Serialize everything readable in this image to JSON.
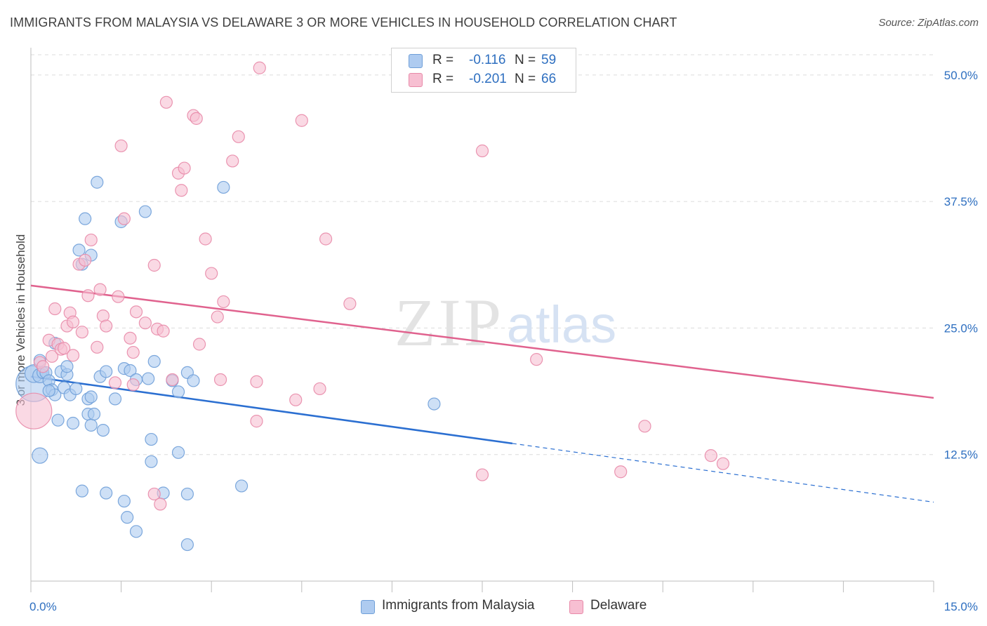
{
  "title": "IMMIGRANTS FROM MALAYSIA VS DELAWARE 3 OR MORE VEHICLES IN HOUSEHOLD CORRELATION CHART",
  "source": "Source: ZipAtlas.com",
  "watermark": {
    "zip": "ZIP",
    "atlas": "atlas"
  },
  "legend_stats": [
    {
      "r_label": "R =",
      "r_value": "-0.116",
      "n_label": "N =",
      "n_value": "59"
    },
    {
      "r_label": "R =",
      "r_value": "-0.201",
      "n_label": "N =",
      "n_value": "66"
    }
  ],
  "colors": {
    "blue_fill": "#aecbf0",
    "blue_stroke": "#6f9fd8",
    "blue_line": "#2b6fd1",
    "pink_fill": "#f7bfd2",
    "pink_stroke": "#e88aa9",
    "pink_line": "#e0628e",
    "tick_label": "#2e6fc0",
    "grid": "#dcdcdc"
  },
  "chart_data": {
    "type": "scatter",
    "title": "IMMIGRANTS FROM MALAYSIA VS DELAWARE 3 OR MORE VEHICLES IN HOUSEHOLD CORRELATION CHART",
    "xlabel": "",
    "ylabel": "3 or more Vehicles in Household",
    "xlim": [
      0,
      15
    ],
    "ylim": [
      0,
      52
    ],
    "x_tick_labels": [
      "0.0%",
      "15.0%"
    ],
    "y_ticks": [
      12.5,
      25.0,
      37.5,
      50.0
    ],
    "y_tick_labels": [
      "12.5%",
      "25.0%",
      "37.5%",
      "50.0%"
    ],
    "grid": true,
    "legend_position": "top-center",
    "series": [
      {
        "name": "Immigrants from Malaysia",
        "r": -0.116,
        "n": 59,
        "trend": {
          "x0": 0,
          "y0": 20.2,
          "x1": 8.0,
          "y1": 13.6,
          "dashed_to_x": 15,
          "dashed_to_y": 7.8
        },
        "points": [
          [
            0.05,
            19.5,
            3
          ],
          [
            0.05,
            20.5,
            1.5
          ],
          [
            0.15,
            21.8,
            1
          ],
          [
            0.15,
            20.3,
            1.2
          ],
          [
            0.2,
            20.6,
            1
          ],
          [
            0.25,
            20.6,
            1
          ],
          [
            0.3,
            19.8,
            1
          ],
          [
            0.35,
            18.9,
            1
          ],
          [
            0.4,
            18.4,
            1
          ],
          [
            0.4,
            23.5,
            1
          ],
          [
            0.45,
            15.9,
            1
          ],
          [
            0.5,
            20.7,
            1
          ],
          [
            0.55,
            19.1,
            1
          ],
          [
            0.6,
            20.4,
            1
          ],
          [
            0.6,
            21.2,
            1
          ],
          [
            0.65,
            18.4,
            1
          ],
          [
            0.7,
            15.6,
            1
          ],
          [
            0.75,
            19.0,
            1
          ],
          [
            0.8,
            32.7,
            1
          ],
          [
            0.85,
            31.3,
            1
          ],
          [
            0.9,
            35.8,
            1
          ],
          [
            0.95,
            16.5,
            1
          ],
          [
            0.95,
            18.0,
            1
          ],
          [
            1.0,
            32.2,
            1
          ],
          [
            1.0,
            15.4,
            1
          ],
          [
            1.05,
            16.5,
            1
          ],
          [
            1.1,
            39.4,
            1
          ],
          [
            1.15,
            20.2,
            1
          ],
          [
            1.2,
            14.9,
            1
          ],
          [
            1.25,
            20.7,
            1
          ],
          [
            1.4,
            18.0,
            1
          ],
          [
            1.5,
            35.5,
            1
          ],
          [
            1.55,
            21.0,
            1
          ],
          [
            1.65,
            20.8,
            1
          ],
          [
            1.75,
            19.9,
            1
          ],
          [
            1.9,
            36.5,
            1
          ],
          [
            1.95,
            20.0,
            1
          ],
          [
            2.0,
            11.8,
            1
          ],
          [
            2.05,
            21.7,
            1
          ],
          [
            2.45,
            18.7,
            1
          ],
          [
            2.6,
            20.6,
            1
          ],
          [
            2.7,
            19.8,
            1
          ],
          [
            3.2,
            38.9,
            1
          ],
          [
            3.5,
            9.4,
            1
          ],
          [
            6.7,
            17.5,
            1
          ],
          [
            0.15,
            12.4,
            1.3
          ],
          [
            0.85,
            8.9,
            1
          ],
          [
            1.25,
            8.7,
            1
          ],
          [
            1.55,
            7.9,
            1
          ],
          [
            1.6,
            6.3,
            1
          ],
          [
            1.75,
            4.9,
            1
          ],
          [
            2.0,
            14.0,
            1
          ],
          [
            2.2,
            8.7,
            1
          ],
          [
            2.45,
            12.7,
            1
          ],
          [
            2.6,
            3.6,
            1
          ],
          [
            2.6,
            8.6,
            1
          ],
          [
            2.35,
            19.8,
            1
          ],
          [
            0.3,
            18.8,
            1
          ],
          [
            1.0,
            18.2,
            1
          ]
        ]
      },
      {
        "name": "Delaware",
        "r": -0.201,
        "n": 66,
        "trend": {
          "x0": 0,
          "y0": 29.2,
          "x1": 15,
          "y1": 18.1
        },
        "points": [
          [
            0.05,
            16.8,
            3
          ],
          [
            0.15,
            21.6,
            1
          ],
          [
            0.2,
            21.2,
            1
          ],
          [
            0.3,
            23.8,
            1
          ],
          [
            0.35,
            22.2,
            1
          ],
          [
            0.4,
            26.9,
            1
          ],
          [
            0.45,
            23.4,
            1
          ],
          [
            0.5,
            22.9,
            1
          ],
          [
            0.55,
            23.0,
            1
          ],
          [
            0.6,
            25.2,
            1
          ],
          [
            0.65,
            26.5,
            1
          ],
          [
            0.7,
            25.6,
            1
          ],
          [
            0.8,
            31.3,
            1
          ],
          [
            0.85,
            24.6,
            1
          ],
          [
            0.9,
            31.7,
            1
          ],
          [
            0.95,
            28.2,
            1
          ],
          [
            1.0,
            33.7,
            1
          ],
          [
            1.1,
            23.1,
            1
          ],
          [
            1.15,
            28.8,
            1
          ],
          [
            1.2,
            26.2,
            1
          ],
          [
            1.25,
            25.2,
            1
          ],
          [
            1.4,
            19.6,
            1
          ],
          [
            1.45,
            28.1,
            1
          ],
          [
            1.5,
            43.0,
            1
          ],
          [
            1.55,
            35.8,
            1
          ],
          [
            1.65,
            24.0,
            1
          ],
          [
            1.7,
            22.6,
            1
          ],
          [
            1.75,
            26.6,
            1
          ],
          [
            1.9,
            25.5,
            1
          ],
          [
            2.05,
            31.2,
            1
          ],
          [
            2.1,
            24.9,
            1
          ],
          [
            2.2,
            24.7,
            1
          ],
          [
            2.25,
            47.3,
            1
          ],
          [
            2.35,
            19.9,
            1
          ],
          [
            2.45,
            40.3,
            1
          ],
          [
            2.5,
            38.6,
            1
          ],
          [
            2.55,
            40.8,
            1
          ],
          [
            2.7,
            46.0,
            1
          ],
          [
            2.75,
            45.7,
            1
          ],
          [
            2.8,
            23.4,
            1
          ],
          [
            2.9,
            33.8,
            1
          ],
          [
            3.0,
            30.4,
            1
          ],
          [
            3.1,
            26.1,
            1
          ],
          [
            3.15,
            19.9,
            1
          ],
          [
            3.2,
            27.6,
            1
          ],
          [
            3.35,
            41.5,
            1
          ],
          [
            3.45,
            43.9,
            1
          ],
          [
            3.8,
            50.7,
            1
          ],
          [
            3.75,
            19.7,
            1
          ],
          [
            3.75,
            15.8,
            1
          ],
          [
            4.4,
            17.9,
            1
          ],
          [
            4.5,
            45.5,
            1
          ],
          [
            4.8,
            19.0,
            1
          ],
          [
            4.9,
            33.8,
            1
          ],
          [
            5.3,
            27.4,
            1
          ],
          [
            7.5,
            42.5,
            1
          ],
          [
            7.5,
            10.5,
            1
          ],
          [
            8.4,
            21.9,
            1
          ],
          [
            9.8,
            10.8,
            1
          ],
          [
            10.2,
            15.3,
            1
          ],
          [
            11.3,
            12.4,
            1
          ],
          [
            11.5,
            11.6,
            1
          ],
          [
            2.05,
            8.6,
            1
          ],
          [
            2.15,
            7.6,
            1
          ],
          [
            0.7,
            22.3,
            1
          ],
          [
            1.7,
            19.4,
            1
          ]
        ]
      }
    ]
  }
}
